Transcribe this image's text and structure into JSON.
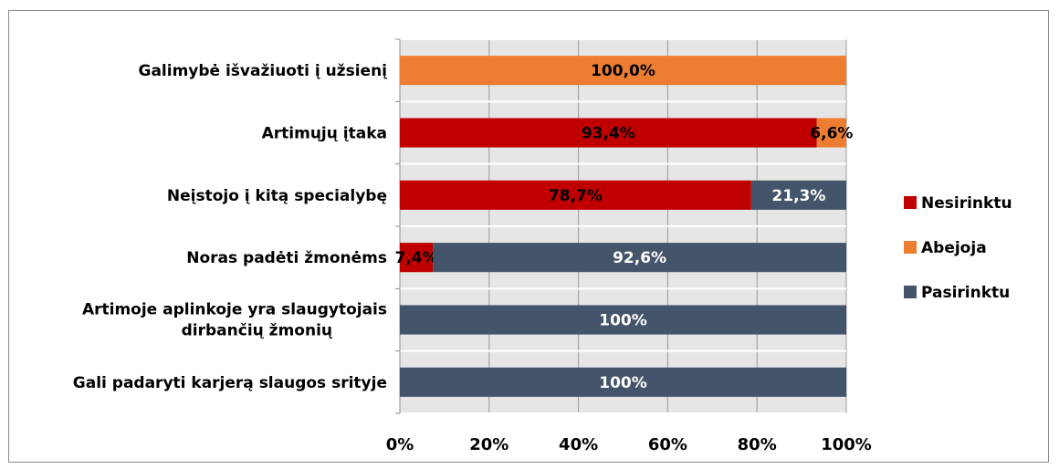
{
  "chart_data": {
    "type": "bar",
    "orientation": "horizontal",
    "stacked": true,
    "percent_stacked": true,
    "categories": [
      "Galimybė išvažiuoti į užsienį",
      "Artimųjų įtaka",
      "Neįstojo į kitą specialybę",
      "Noras padėti žmonėms",
      "Artimoje aplinkoje yra slaugytojais dirbančių žmonių",
      "Gali padaryti karjerą slaugos srityje"
    ],
    "series": [
      {
        "name": "Nesirinktu",
        "color": "#C00000",
        "values": [
          0,
          93.4,
          78.7,
          7.4,
          0,
          0
        ],
        "labels": [
          "",
          "93,4%",
          "78,7%",
          "7,4%",
          "",
          ""
        ]
      },
      {
        "name": "Abejoja",
        "color": "#ED7D31",
        "values": [
          100,
          6.6,
          0,
          0,
          0,
          0
        ],
        "labels": [
          "100,0%",
          "6,6%",
          "",
          "",
          "",
          ""
        ]
      },
      {
        "name": "Pasirinktu",
        "color": "#44546A",
        "values": [
          0,
          0,
          21.3,
          92.6,
          100,
          100
        ],
        "labels": [
          "",
          "",
          "21,3%",
          "92,6%",
          "100%",
          "100%"
        ]
      }
    ],
    "xlim": [
      0,
      100
    ],
    "x_ticks": [
      "0%",
      "20%",
      "40%",
      "60%",
      "80%",
      "100%"
    ],
    "grid": true,
    "plot_background": "#E6E6E6",
    "legend_position": "right",
    "legend_order": [
      "Nesirinktu",
      "Abejoja",
      "Pasirinktu"
    ]
  }
}
